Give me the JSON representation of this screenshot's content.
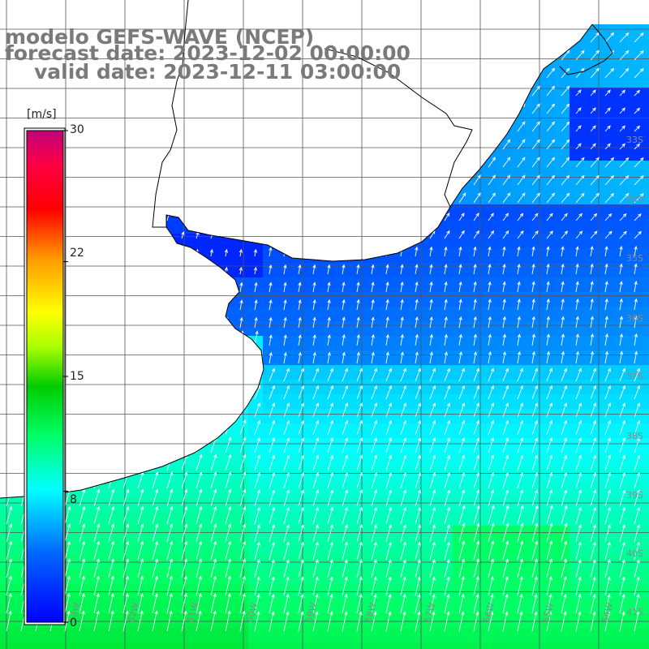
{
  "title": {
    "line1": "modelo GEFS-WAVE (NCEP)",
    "line2": "forecast date: 2023-12-02 00:00:00",
    "line3": "valid date: 2023-12-11 03:00:00"
  },
  "colorbar": {
    "unit": "[m/s]",
    "ticks": [
      "30",
      "22",
      "15",
      "8",
      "0"
    ],
    "tick_values": [
      30,
      22,
      15,
      8,
      0
    ],
    "range": [
      0,
      30
    ],
    "colors": [
      "#0000ff",
      "#00a0ff",
      "#00ffff",
      "#00ff66",
      "#00cc00",
      "#aaff00",
      "#ffff00",
      "#ff9900",
      "#ff0000",
      "#ff0066",
      "#c0007a"
    ]
  },
  "map": {
    "lat_labels": [
      "33S",
      "34S",
      "35S",
      "36S",
      "37S",
      "38S",
      "39S",
      "40S",
      "41S"
    ],
    "lon_labels": [
      "63W",
      "62W",
      "61W",
      "60W",
      "59W",
      "58W",
      "57W",
      "56W",
      "55W",
      "54W"
    ],
    "land_color": "#ffffff",
    "grid_color": "#555555",
    "coast_color": "#000000",
    "vector_color": "#ffffff",
    "wind_field": "wind speed (m/s) with direction vectors"
  }
}
